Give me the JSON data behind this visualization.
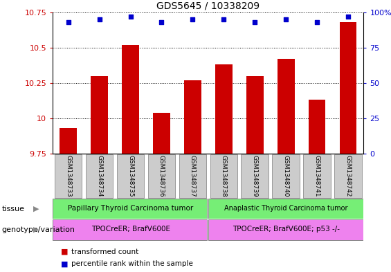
{
  "title": "GDS5645 / 10338209",
  "samples": [
    "GSM1348733",
    "GSM1348734",
    "GSM1348735",
    "GSM1348736",
    "GSM1348737",
    "GSM1348738",
    "GSM1348739",
    "GSM1348740",
    "GSM1348741",
    "GSM1348742"
  ],
  "bar_values": [
    9.93,
    10.3,
    10.52,
    10.04,
    10.27,
    10.38,
    10.3,
    10.42,
    10.13,
    10.68
  ],
  "percentile_values": [
    93,
    95,
    97,
    93,
    95,
    95,
    93,
    95,
    93,
    97
  ],
  "bar_color": "#cc0000",
  "dot_color": "#0000cc",
  "ylim_left": [
    9.75,
    10.75
  ],
  "ylim_right": [
    0,
    100
  ],
  "yticks_left": [
    9.75,
    10.0,
    10.25,
    10.5,
    10.75
  ],
  "yticks_right": [
    0,
    25,
    50,
    75,
    100
  ],
  "ytick_labels_left": [
    "9.75",
    "10",
    "10.25",
    "10.5",
    "10.75"
  ],
  "ytick_labels_right": [
    "0",
    "25",
    "50",
    "75",
    "100%"
  ],
  "grid_lines_dotted": [
    10.0,
    10.25,
    10.5,
    10.75
  ],
  "tissue_group1_label": "Papillary Thyroid Carcinoma tumor",
  "tissue_group2_label": "Anaplastic Thyroid Carcinoma tumor",
  "tissue_color": "#76ee76",
  "genotype_group1_label": "TPOCreER; BrafV600E",
  "genotype_group2_label": "TPOCreER; BrafV600E; p53 -/-",
  "genotype_color": "#ee82ee",
  "group1_count": 5,
  "group2_count": 5,
  "legend_bar_label": "transformed count",
  "legend_dot_label": "percentile rank within the sample",
  "tissue_row_label": "tissue",
  "genotype_row_label": "genotype/variation",
  "bar_width": 0.55,
  "background_color": "#ffffff",
  "tick_color_left": "#cc0000",
  "tick_color_right": "#0000cc",
  "sample_box_color": "#cccccc",
  "sample_box_edge": "#999999"
}
